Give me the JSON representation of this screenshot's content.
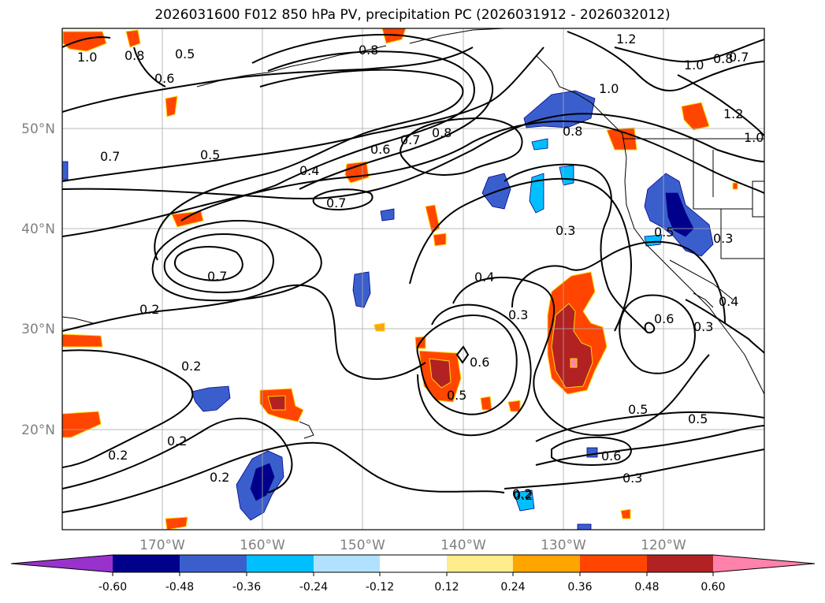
{
  "title": "2026031600 F012 850 hPa PV, precipitation PC (2026031912 - 2026032012)",
  "map": {
    "lon_labels": [
      "170°W",
      "160°W",
      "150°W",
      "140°W",
      "130°W",
      "120°W"
    ],
    "lat_labels": [
      "50°N",
      "40°N",
      "30°N",
      "20°N"
    ],
    "contour_labels": [
      "1.0",
      "0.8",
      "0.6",
      "0.5",
      "0.8",
      "1.2",
      "1.0",
      "0.8",
      "0.7",
      "1.0",
      "1.2",
      "1.0",
      "0.7",
      "0.5",
      "0.4",
      "0.6",
      "0.7",
      "0.8",
      "0.8",
      "0.7",
      "0.7",
      "0.3",
      "0.5",
      "0.3",
      "0.4",
      "0.3",
      "0.6",
      "0.6",
      "0.4",
      "0.3",
      "0.2",
      "0.2",
      "0.2",
      "0.2",
      "0.2",
      "0.2",
      "0.5",
      "0.5",
      "0.5",
      "0.6",
      "0.3",
      "0.2"
    ]
  },
  "colorbar": {
    "ticks": [
      "-0.60",
      "-0.48",
      "-0.36",
      "-0.24",
      "-0.12",
      "0.12",
      "0.24",
      "0.36",
      "0.48",
      "0.60"
    ],
    "colors": [
      "#9932CC",
      "#00008B",
      "#3A5FCD",
      "#00BFFF",
      "#B0E2FF",
      "#FFFFFF",
      "#FFEC8B",
      "#FFA500",
      "#FF4500",
      "#B22222",
      "#FF82AB"
    ]
  },
  "colors": {
    "grid": "#A9A9A9",
    "contour": "#000000",
    "tick_label": "#808080"
  }
}
